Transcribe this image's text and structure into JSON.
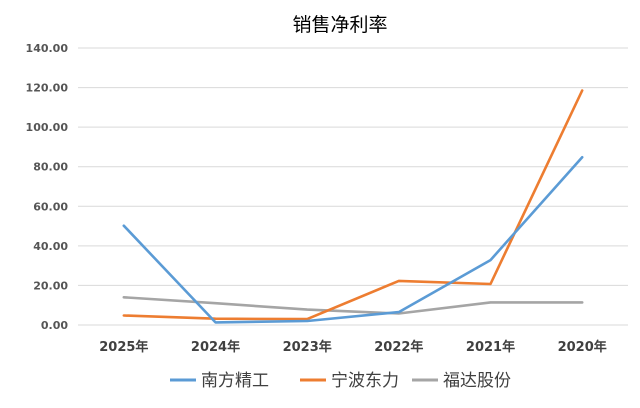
{
  "chart_data": {
    "type": "line",
    "title": "销售净利率",
    "xlabel": "",
    "ylabel": "",
    "categories": [
      "2025年",
      "2024年",
      "2023年",
      "2022年",
      "2021年",
      "2020年"
    ],
    "ylim": [
      0,
      140
    ],
    "yticks": [
      "0.00",
      "20.00",
      "40.00",
      "60.00",
      "80.00",
      "100.00",
      "120.00",
      "140.00"
    ],
    "ytick_values": [
      0,
      20,
      40,
      60,
      80,
      100,
      120,
      140
    ],
    "grid": true,
    "legend_position": "bottom",
    "series": [
      {
        "name": "南方精工",
        "color": "#5B9BD5",
        "values": [
          50.2,
          1.3,
          2.0,
          6.5,
          32.8,
          84.8
        ]
      },
      {
        "name": "宁波东力",
        "color": "#ED7D31",
        "values": [
          4.8,
          3.2,
          3.0,
          22.3,
          20.7,
          118.5
        ]
      },
      {
        "name": "福达股份",
        "color": "#A5A5A5",
        "values": [
          14.0,
          11.0,
          7.8,
          5.8,
          11.4,
          11.4
        ]
      }
    ]
  }
}
